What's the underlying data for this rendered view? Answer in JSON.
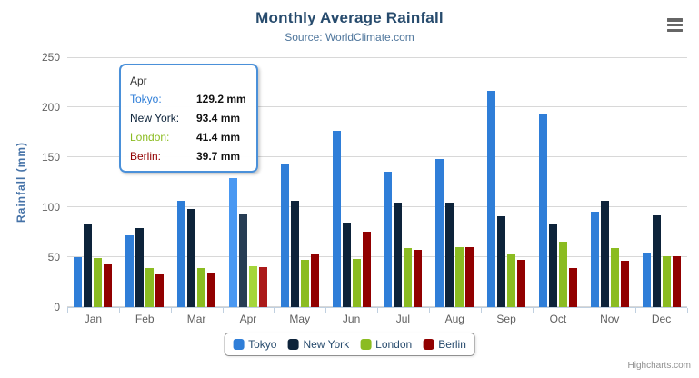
{
  "header": {
    "title": "Monthly Average Rainfall",
    "subtitle": "Source: WorldClimate.com"
  },
  "y_axis": {
    "title": "Rainfall (mm)"
  },
  "chart_data": {
    "type": "bar",
    "title": "Monthly Average Rainfall",
    "subtitle": "Source: WorldClimate.com",
    "xlabel": "",
    "ylabel": "Rainfall (mm)",
    "ylim": [
      0,
      250
    ],
    "yticks": [
      0,
      50,
      100,
      150,
      200,
      250
    ],
    "grid": true,
    "legend_position": "bottom",
    "categories": [
      "Jan",
      "Feb",
      "Mar",
      "Apr",
      "May",
      "Jun",
      "Jul",
      "Aug",
      "Sep",
      "Oct",
      "Nov",
      "Dec"
    ],
    "hovered_category": "Apr",
    "series": [
      {
        "name": "Tokyo",
        "color": "#2f7ed8",
        "values": [
          49.9,
          71.5,
          106.4,
          129.2,
          144.0,
          176.0,
          135.6,
          148.5,
          216.4,
          194.1,
          95.6,
          54.4
        ]
      },
      {
        "name": "New York",
        "color": "#0d233a",
        "values": [
          83.6,
          78.8,
          98.5,
          93.4,
          106.0,
          84.5,
          105.0,
          104.3,
          91.2,
          83.5,
          106.6,
          92.3
        ]
      },
      {
        "name": "London",
        "color": "#8bbc21",
        "values": [
          48.9,
          38.8,
          39.3,
          41.4,
          47.0,
          48.3,
          59.0,
          59.6,
          52.4,
          65.2,
          59.3,
          51.2
        ]
      },
      {
        "name": "Berlin",
        "color": "#910000",
        "values": [
          42.4,
          33.2,
          34.5,
          39.7,
          52.6,
          75.5,
          57.4,
          60.4,
          47.6,
          39.1,
          46.8,
          51.1
        ]
      }
    ]
  },
  "tooltip": {
    "header": "Apr",
    "border_color": "#4a90d9",
    "rows": [
      {
        "label": "Tokyo:",
        "value": "129.2 mm",
        "color": "#2f7ed8"
      },
      {
        "label": "New York:",
        "value": "93.4 mm",
        "color": "#0d233a"
      },
      {
        "label": "London:",
        "value": "41.4 mm",
        "color": "#8bbc21"
      },
      {
        "label": "Berlin:",
        "value": "39.7 mm",
        "color": "#910000"
      }
    ]
  },
  "legend": {
    "items": [
      "Tokyo",
      "New York",
      "London",
      "Berlin"
    ]
  },
  "credits": {
    "label": "Highcharts.com"
  },
  "icons": {
    "menu": "hamburger-icon"
  },
  "colors": {
    "title": "#274b6d",
    "subtitle": "#4f769c",
    "axis_label": "#606060",
    "y_axis_title": "#4572a7",
    "gridline": "#d8d8d8",
    "axis_line": "#c0d0e0",
    "legend_border": "#909090",
    "credits_text": "#909090"
  }
}
